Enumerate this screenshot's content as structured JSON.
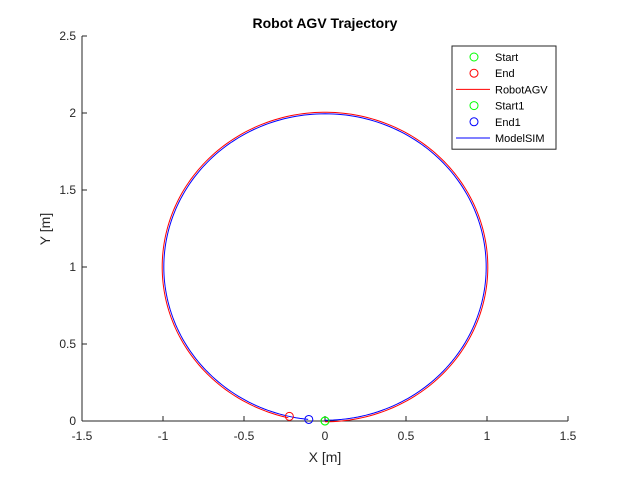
{
  "chart_data": {
    "type": "line",
    "title": "Robot AGV Trajectory",
    "xlabel": "X [m]",
    "ylabel": "Y [m]",
    "xlim": [
      -1.5,
      1.5
    ],
    "ylim": [
      0,
      2.5
    ],
    "xticks": [
      -1.5,
      -1,
      -0.5,
      0,
      0.5,
      1,
      1.5
    ],
    "xtick_labels": [
      "-1.5",
      "-1",
      "-0.5",
      "0",
      "0.5",
      "1",
      "1.5"
    ],
    "yticks": [
      0,
      0.5,
      1,
      1.5,
      2,
      2.5
    ],
    "ytick_labels": [
      "0",
      "0.5",
      "1",
      "1.5",
      "2",
      "2.5"
    ],
    "grid": false,
    "legend_position": "top-right",
    "series": [
      {
        "name": "RobotAGV",
        "kind": "line",
        "color": "#ff0000",
        "path": {
          "center": [
            0.0,
            1.0
          ],
          "radius": 1.005,
          "start_angle_deg": 270,
          "end_angle_deg": 617
        },
        "x": [
          0.0,
          0.26,
          0.5,
          0.71,
          0.87,
          0.97,
          1.0,
          0.97,
          0.87,
          0.71,
          0.5,
          0.26,
          0.0,
          -0.26,
          -0.5,
          -0.71,
          -0.87,
          -0.97,
          -1.0,
          -0.97,
          -0.87,
          -0.71,
          -0.5,
          -0.22
        ],
        "y": [
          0.0,
          0.03,
          0.13,
          0.29,
          0.5,
          0.74,
          1.0,
          1.26,
          1.5,
          1.71,
          1.87,
          1.97,
          2.0,
          1.97,
          1.87,
          1.71,
          1.5,
          1.26,
          1.0,
          0.74,
          0.5,
          0.29,
          0.13,
          0.03
        ]
      },
      {
        "name": "ModelSIM",
        "kind": "line",
        "color": "#0000ff",
        "path": {
          "center": [
            0.0,
            1.0
          ],
          "radius": 0.995,
          "start_angle_deg": 270,
          "end_angle_deg": 624
        },
        "x": [
          0.0,
          0.26,
          0.5,
          0.7,
          0.86,
          0.96,
          0.99,
          0.96,
          0.86,
          0.7,
          0.5,
          0.26,
          0.0,
          -0.26,
          -0.5,
          -0.7,
          -0.86,
          -0.96,
          -0.99,
          -0.96,
          -0.86,
          -0.7,
          -0.5,
          -0.1
        ],
        "y": [
          0.0,
          0.03,
          0.14,
          0.3,
          0.5,
          0.74,
          1.0,
          1.26,
          1.5,
          1.7,
          1.86,
          1.96,
          2.0,
          1.96,
          1.86,
          1.7,
          1.5,
          1.26,
          1.0,
          0.74,
          0.5,
          0.3,
          0.14,
          0.01
        ]
      }
    ],
    "markers": [
      {
        "name": "Start",
        "color": "#00ff00",
        "x": 0.0,
        "y": 0.0
      },
      {
        "name": "End",
        "color": "#ff0000",
        "x": -0.22,
        "y": 0.03
      },
      {
        "name": "Start1",
        "color": "#00ff00",
        "x": 0.0,
        "y": 0.0
      },
      {
        "name": "End1",
        "color": "#0000ff",
        "x": -0.1,
        "y": 0.01
      }
    ],
    "legend": [
      {
        "label": "Start",
        "kind": "marker",
        "color": "#00ff00"
      },
      {
        "label": "End",
        "kind": "marker",
        "color": "#ff0000"
      },
      {
        "label": "RobotAGV",
        "kind": "line",
        "color": "#ff0000"
      },
      {
        "label": "Start1",
        "kind": "marker",
        "color": "#00ff00"
      },
      {
        "label": "End1",
        "kind": "marker",
        "color": "#0000ff"
      },
      {
        "label": "ModelSIM",
        "kind": "line",
        "color": "#0000ff"
      }
    ]
  }
}
